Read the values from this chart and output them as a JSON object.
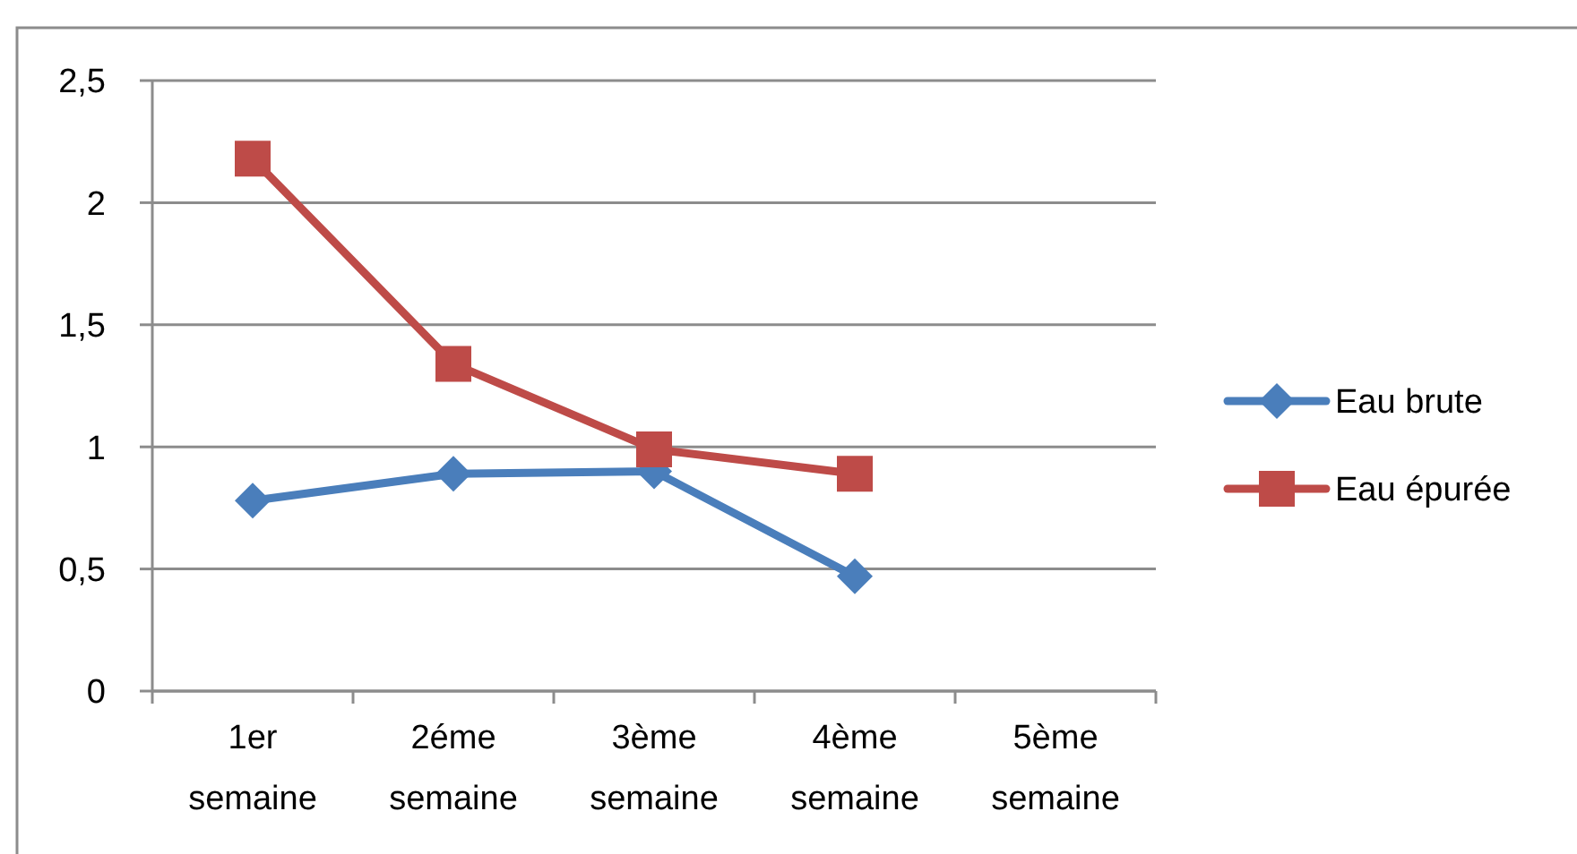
{
  "chart_data": {
    "type": "line",
    "categories": [
      "1er semaine",
      "2éme semaine",
      "3ème semaine",
      "4ème semaine",
      "5ème semaine"
    ],
    "series": [
      {
        "name": "Eau brute",
        "color": "#4a7ebb",
        "marker": "diamond",
        "values": [
          0.78,
          0.89,
          0.9,
          0.47,
          null
        ]
      },
      {
        "name": "Eau épurée",
        "color": "#be4b48",
        "marker": "square",
        "values": [
          2.18,
          1.34,
          0.99,
          0.89,
          null
        ]
      }
    ],
    "ylim": [
      0,
      2.5
    ],
    "yticks": [
      0,
      {
        "value": 0.5,
        "label": "0,5"
      },
      1,
      {
        "value": 1.5,
        "label": "1,5"
      },
      2,
      {
        "value": 2.5,
        "label": "2,5"
      }
    ],
    "grid": "y",
    "legend": "right"
  }
}
